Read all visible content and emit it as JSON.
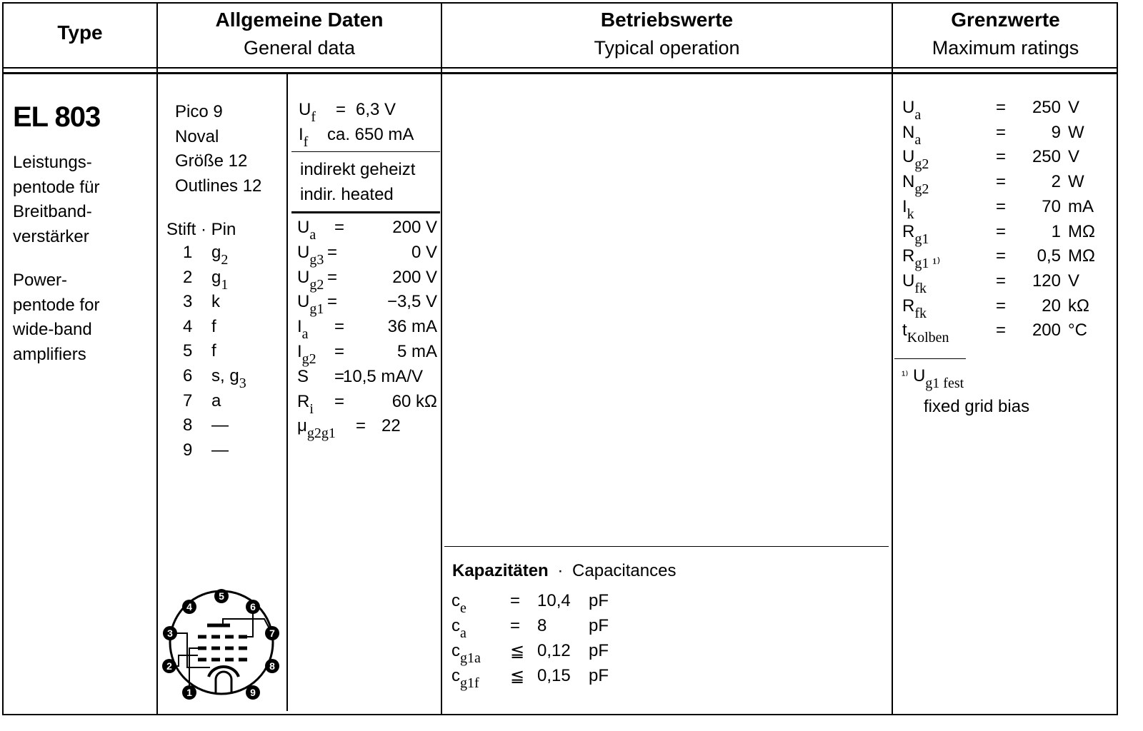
{
  "header": {
    "type": "Type",
    "general_de": "Allgemeine Daten",
    "general_en": "General data",
    "typical_de": "Betriebswerte",
    "typical_en": "Typical operation",
    "max_de": "Grenzwerte",
    "max_en": "Maximum ratings"
  },
  "tube": {
    "name": "EL 803",
    "desc_de": [
      "Leistungs-",
      "pentode für",
      "Breitband-",
      "verstärker"
    ],
    "desc_en": [
      "Power-",
      "pentode for",
      "wide-band",
      "amplifiers"
    ]
  },
  "general": {
    "base": [
      "Pico 9",
      "Noval",
      "Größe 12",
      "Outlines 12"
    ],
    "pin_header": "Stift · Pin",
    "pins": [
      {
        "n": "1",
        "f": "g",
        "s": "2"
      },
      {
        "n": "2",
        "f": "g",
        "s": "1"
      },
      {
        "n": "3",
        "f": "k",
        "s": ""
      },
      {
        "n": "4",
        "f": "f",
        "s": ""
      },
      {
        "n": "5",
        "f": "f",
        "s": ""
      },
      {
        "n": "6",
        "f": "s, g",
        "s": "3"
      },
      {
        "n": "7",
        "f": "a",
        "s": ""
      },
      {
        "n": "8",
        "f": "—",
        "s": ""
      },
      {
        "n": "9",
        "f": "—",
        "s": ""
      }
    ],
    "heater": [
      {
        "sym": "U",
        "sub": "f",
        "eq": "=",
        "val": "6,3 V"
      },
      {
        "sym": "I",
        "sub": "f",
        "eq": "",
        "val": "ca. 650 mA"
      }
    ],
    "heating_de": "indirekt geheizt",
    "heating_en": "indir. heated",
    "operation": [
      {
        "sym": "U",
        "sub": "a",
        "eq": "=",
        "val": "200 V"
      },
      {
        "sym": "U",
        "sub": "g3",
        "eq": "=",
        "val": "0 V"
      },
      {
        "sym": "U",
        "sub": "g2",
        "eq": "=",
        "val": "200 V"
      },
      {
        "sym": "U",
        "sub": "g1",
        "eq": "=",
        "val": "−3,5 V"
      },
      {
        "sym": "I",
        "sub": "a",
        "eq": "=",
        "val": "36 mA"
      },
      {
        "sym": "I",
        "sub": "g2",
        "eq": "=",
        "val": "5 mA"
      },
      {
        "sym": "S",
        "sub": "",
        "eq": "=",
        "val": "10,5 mA/V"
      },
      {
        "sym": "R",
        "sub": "i",
        "eq": "=",
        "val": "60 kΩ"
      },
      {
        "sym": "μ",
        "sub": "g2g1",
        "eq": "=",
        "val": "22"
      }
    ],
    "diagram_labels": [
      "1",
      "2",
      "3",
      "4",
      "5",
      "6",
      "7",
      "8",
      "9"
    ]
  },
  "capacitances": {
    "title_de": "Kapazitäten",
    "sep": "·",
    "title_en": "Capacitances",
    "rows": [
      {
        "sym": "c",
        "sub": "e",
        "eq": "=",
        "val": "10,4",
        "unit": "pF"
      },
      {
        "sym": "c",
        "sub": "a",
        "eq": "=",
        "val": "8",
        "unit": "pF"
      },
      {
        "sym": "c",
        "sub": "g1a",
        "eq": "≦",
        "val": "0,12",
        "unit": "pF"
      },
      {
        "sym": "c",
        "sub": "g1f",
        "eq": "≦",
        "val": "0,15",
        "unit": "pF"
      }
    ]
  },
  "maximum": {
    "rows": [
      {
        "sym": "U",
        "sub": "a",
        "eq": "=",
        "val": "250",
        "unit": "V"
      },
      {
        "sym": "N",
        "sub": "a",
        "eq": "=",
        "val": "9",
        "unit": "W"
      },
      {
        "sym": "U",
        "sub": "g2",
        "eq": "=",
        "val": "250",
        "unit": "V"
      },
      {
        "sym": "N",
        "sub": "g2",
        "eq": "=",
        "val": "2",
        "unit": "W"
      },
      {
        "sym": "I",
        "sub": "k",
        "eq": "=",
        "val": "70",
        "unit": "mA"
      },
      {
        "sym": "R",
        "sub": "g1",
        "eq": "=",
        "val": "1",
        "unit": "MΩ"
      },
      {
        "sym": "R",
        "sub": "g1 ¹⁾",
        "eq": "=",
        "val": "0,5",
        "unit": "MΩ"
      },
      {
        "sym": "U",
        "sub": "fk",
        "eq": "=",
        "val": "120",
        "unit": "V"
      },
      {
        "sym": "R",
        "sub": "fk",
        "eq": "=",
        "val": "20",
        "unit": "kΩ"
      },
      {
        "sym": "t",
        "sub": "Kolben",
        "eq": "=",
        "val": "200",
        "unit": "°C"
      }
    ],
    "footnote_mark": "¹⁾",
    "footnote_sym": "U",
    "footnote_sub": "g1 fest",
    "footnote_en": "fixed grid bias"
  }
}
